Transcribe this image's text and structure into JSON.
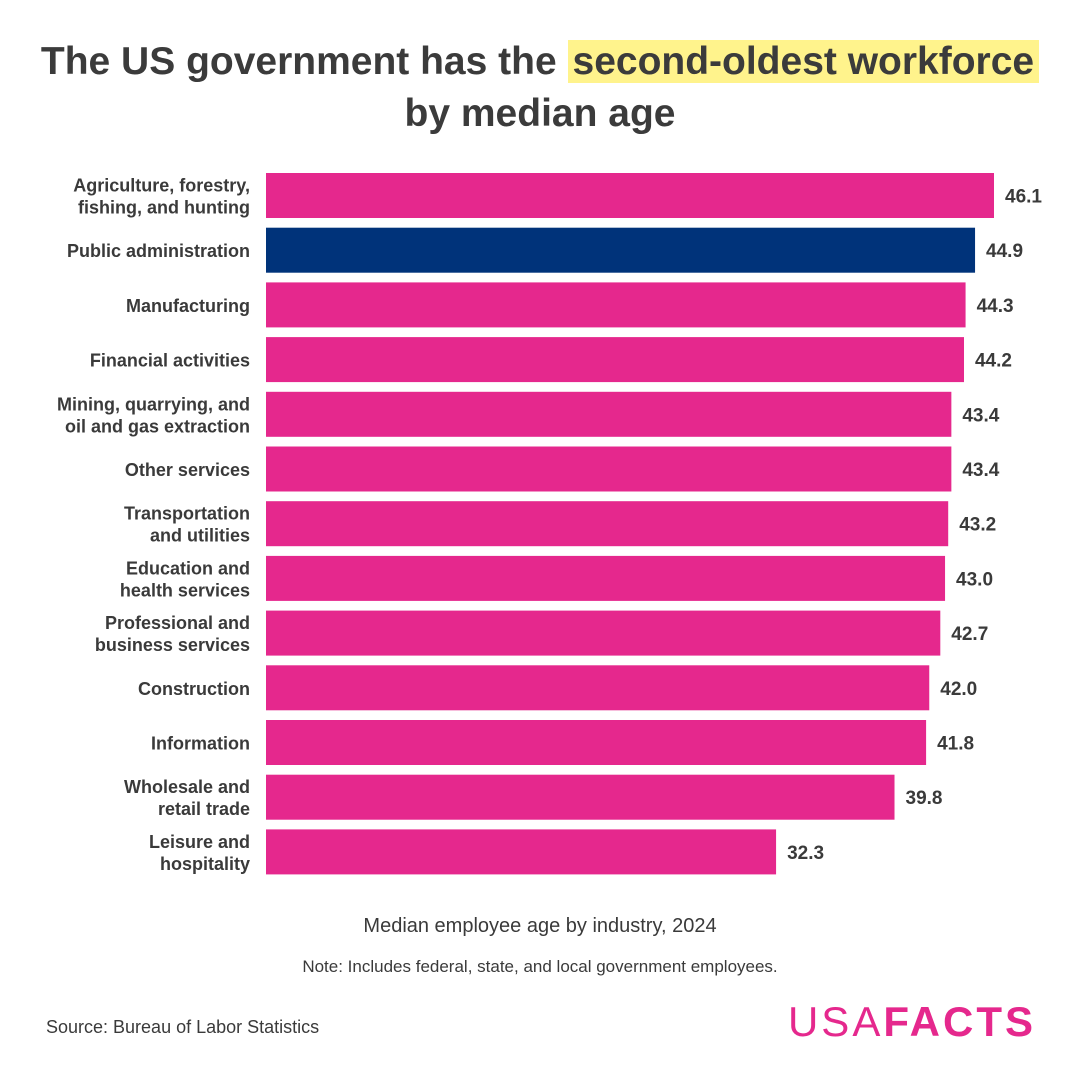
{
  "title": {
    "part1": "The US government has the ",
    "highlight": "second-oldest workforce",
    "part2": "by median age"
  },
  "colors": {
    "default_bar": "#e5288d",
    "highlight_bar": "#00337a",
    "title_highlight": "#fff38c"
  },
  "chart_data": {
    "type": "bar",
    "orientation": "horizontal",
    "title": "The US government has the second-oldest workforce by median age",
    "xlabel": "Median employee age by industry, 2024",
    "categories": [
      [
        "Agriculture, forestry,",
        "fishing, and hunting"
      ],
      [
        "Public administration"
      ],
      [
        "Manufacturing"
      ],
      [
        "Financial activities"
      ],
      [
        "Mining, quarrying, and",
        "oil and gas extraction"
      ],
      [
        "Other services"
      ],
      [
        "Transportation",
        "and utilities"
      ],
      [
        "Education and",
        "health services"
      ],
      [
        "Professional and",
        "business services"
      ],
      [
        "Construction"
      ],
      [
        "Information"
      ],
      [
        "Wholesale and",
        "retail trade"
      ],
      [
        "Leisure and",
        "hospitality"
      ]
    ],
    "values": [
      46.1,
      44.9,
      44.3,
      44.2,
      43.4,
      43.4,
      43.2,
      43.0,
      42.7,
      42.0,
      41.8,
      39.8,
      32.3
    ],
    "value_labels": [
      "46.1",
      "44.9",
      "44.3",
      "44.2",
      "43.4",
      "43.4",
      "43.2",
      "43.0",
      "42.7",
      "42.0",
      "41.8",
      "39.8",
      "32.3"
    ],
    "highlight_index": 1,
    "xlim": [
      0,
      46.1
    ],
    "grid": false
  },
  "subtitle": "Median employee age by industry, 2024",
  "note": "Note: Includes federal, state, and local government employees.",
  "source": "Source: Bureau of Labor Statistics",
  "logo": {
    "part1": "USA",
    "part2": "FACTS"
  }
}
